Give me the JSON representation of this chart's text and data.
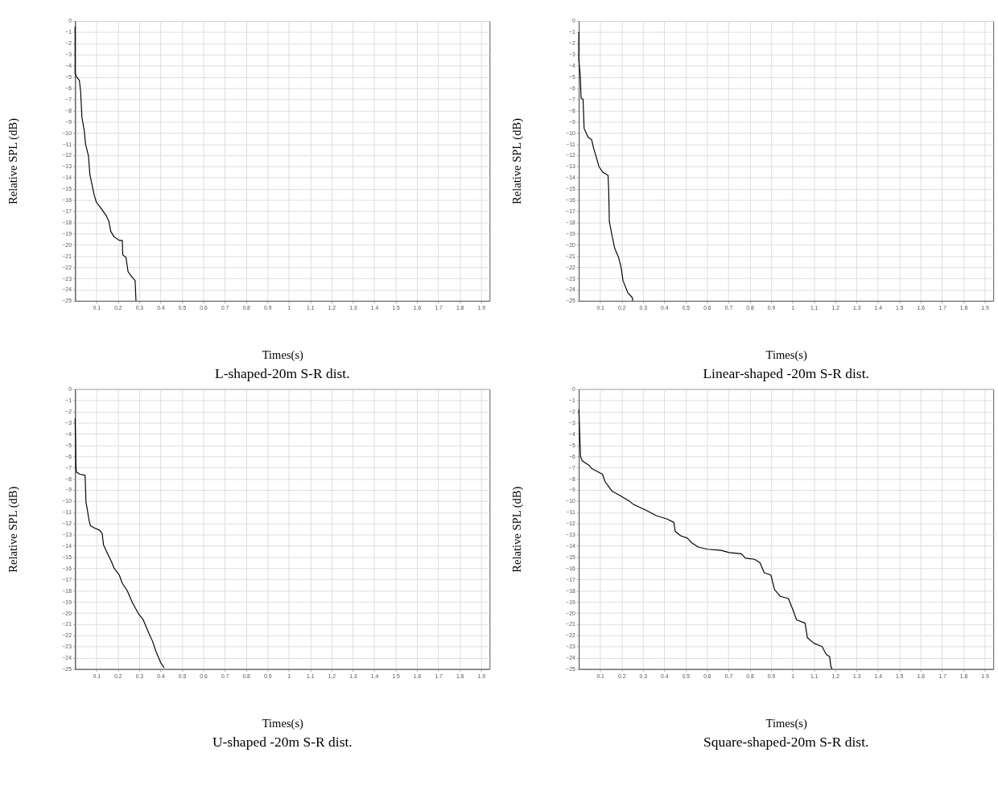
{
  "chart_data": [
    {
      "type": "line",
      "title": "L-shaped-20m S-R dist.",
      "xlabel": "Times(s)",
      "ylabel": "Relative SPL (dB)",
      "xlim": [
        0,
        1.94
      ],
      "ylim": [
        -25,
        0
      ],
      "xticks": [
        0.1,
        0.2,
        0.3,
        0.4,
        0.5,
        0.6,
        0.7,
        0.8,
        0.9,
        1,
        1.1,
        1.2,
        1.3,
        1.4,
        1.5,
        1.6,
        1.7,
        1.8,
        1.9
      ],
      "yticks": [
        -25,
        -24,
        -23,
        -22,
        -21,
        -20,
        -19,
        -18,
        -17,
        -16,
        -15,
        -14,
        -13,
        -12,
        -11,
        -10,
        -9,
        -8,
        -7,
        -6,
        -5,
        -4,
        -3,
        -2,
        -1,
        0
      ],
      "grid": true,
      "series": [
        {
          "color": "#000000",
          "x": [
            0,
            0,
            0.007,
            0.02,
            0.026,
            0.032,
            0.043,
            0.049,
            0.063,
            0.069,
            0.08,
            0.09,
            0.1,
            0.12,
            0.146,
            0.158,
            0.167,
            0.183,
            0.207,
            0.221,
            0.223,
            0.238,
            0.248,
            0.263,
            0.281,
            0.285
          ],
          "values": [
            -0.5,
            -4.7,
            -5,
            -5.3,
            -6.3,
            -8.6,
            -9.8,
            -11,
            -12.1,
            -13.7,
            -14.7,
            -15.6,
            -16.2,
            -16.7,
            -17.4,
            -17.9,
            -18.8,
            -19.3,
            -19.6,
            -19.6,
            -20.9,
            -21.1,
            -22.4,
            -22.8,
            -23.2,
            -25
          ]
        }
      ]
    },
    {
      "type": "line",
      "title": "Linear-shaped -20m S-R dist.",
      "xlabel": "Times(s)",
      "ylabel": "Relative SPL (dB)",
      "xlim": [
        0,
        1.94
      ],
      "ylim": [
        -25,
        0
      ],
      "xticks": [
        0.1,
        0.2,
        0.3,
        0.4,
        0.5,
        0.6,
        0.7,
        0.8,
        0.9,
        1,
        1.1,
        1.2,
        1.3,
        1.4,
        1.5,
        1.6,
        1.7,
        1.8,
        1.9
      ],
      "yticks": [
        -25,
        -24,
        -23,
        -22,
        -21,
        -20,
        -19,
        -18,
        -17,
        -16,
        -15,
        -14,
        -13,
        -12,
        -11,
        -10,
        -9,
        -8,
        -7,
        -6,
        -5,
        -4,
        -3,
        -2,
        -1,
        0
      ],
      "grid": true,
      "series": [
        {
          "color": "#000000",
          "x": [
            0,
            0,
            0.007,
            0.011,
            0.02,
            0.025,
            0.03,
            0.044,
            0.06,
            0.07,
            0.084,
            0.094,
            0.112,
            0.137,
            0.14,
            0.143,
            0.156,
            0.168,
            0.186,
            0.199,
            0.207,
            0.23,
            0.25,
            0.253
          ],
          "values": [
            -1,
            -3.5,
            -4.9,
            -6.9,
            -7,
            -9.6,
            -9.8,
            -10.4,
            -10.6,
            -11.4,
            -12.3,
            -13,
            -13.5,
            -13.8,
            -15.1,
            -17.9,
            -19.2,
            -20.3,
            -21.1,
            -22.1,
            -23.2,
            -24.3,
            -24.7,
            -25
          ]
        }
      ]
    },
    {
      "type": "line",
      "title": "U-shaped -20m S-R dist.",
      "xlabel": "Times(s)",
      "ylabel": "Relative SPL (dB)",
      "xlim": [
        0,
        1.94
      ],
      "ylim": [
        -25,
        0
      ],
      "xticks": [
        0.1,
        0.2,
        0.3,
        0.4,
        0.5,
        0.6,
        0.7,
        0.8,
        0.9,
        1,
        1.1,
        1.2,
        1.3,
        1.4,
        1.5,
        1.6,
        1.7,
        1.8,
        1.9
      ],
      "yticks": [
        -25,
        -24,
        -23,
        -22,
        -21,
        -20,
        -19,
        -18,
        -17,
        -16,
        -15,
        -14,
        -13,
        -12,
        -11,
        -10,
        -9,
        -8,
        -7,
        -6,
        -5,
        -4,
        -3,
        -2,
        -1,
        0
      ],
      "grid": true,
      "series": [
        {
          "color": "#000000",
          "x": [
            0,
            0.004,
            0.006,
            0.022,
            0.047,
            0.051,
            0.056,
            0.065,
            0.072,
            0.09,
            0.115,
            0.127,
            0.133,
            0.152,
            0.17,
            0.183,
            0.207,
            0.22,
            0.244,
            0.269,
            0.298,
            0.319,
            0.343,
            0.362,
            0.38,
            0.4,
            0.417
          ],
          "values": [
            -2.6,
            -6.8,
            -7.4,
            -7.6,
            -7.7,
            -10.1,
            -10.6,
            -11.7,
            -12.2,
            -12.4,
            -12.6,
            -12.9,
            -13.9,
            -14.7,
            -15.4,
            -16,
            -16.6,
            -17.3,
            -18,
            -19.1,
            -20.1,
            -20.6,
            -21.7,
            -22.5,
            -23.5,
            -24.4,
            -24.9
          ]
        }
      ]
    },
    {
      "type": "line",
      "title": "Square-shaped-20m S-R dist.",
      "xlabel": "Times(s)",
      "ylabel": "Relative SPL (dB)",
      "xlim": [
        0,
        1.94
      ],
      "ylim": [
        -25,
        0
      ],
      "xticks": [
        0.1,
        0.2,
        0.3,
        0.4,
        0.5,
        0.6,
        0.7,
        0.8,
        0.9,
        1,
        1.1,
        1.2,
        1.3,
        1.4,
        1.5,
        1.6,
        1.7,
        1.8,
        1.9
      ],
      "yticks": [
        -25,
        -24,
        -23,
        -22,
        -21,
        -20,
        -19,
        -18,
        -17,
        -16,
        -15,
        -14,
        -13,
        -12,
        -11,
        -10,
        -9,
        -8,
        -7,
        -6,
        -5,
        -4,
        -3,
        -2,
        -1,
        0
      ],
      "grid": true,
      "series": [
        {
          "color": "#000000",
          "x": [
            0,
            0.004,
            0.008,
            0.016,
            0.048,
            0.061,
            0.111,
            0.124,
            0.136,
            0.155,
            0.193,
            0.237,
            0.256,
            0.313,
            0.363,
            0.414,
            0.445,
            0.451,
            0.477,
            0.508,
            0.527,
            0.559,
            0.603,
            0.666,
            0.704,
            0.761,
            0.78,
            0.823,
            0.848,
            0.868,
            0.899,
            0.916,
            0.943,
            0.981,
            1.004,
            1.019,
            1.059,
            1.07,
            1.101,
            1.139,
            1.158,
            1.174,
            1.18,
            1.186
          ],
          "values": [
            -1.8,
            -3.8,
            -6,
            -6.4,
            -6.8,
            -7.1,
            -7.6,
            -8.3,
            -8.6,
            -9.1,
            -9.5,
            -10,
            -10.3,
            -10.8,
            -11.3,
            -11.6,
            -11.9,
            -12.7,
            -13.1,
            -13.3,
            -13.7,
            -14.1,
            -14.3,
            -14.4,
            -14.6,
            -14.7,
            -15.1,
            -15.2,
            -15.5,
            -16.4,
            -16.6,
            -17.9,
            -18.5,
            -18.7,
            -19.8,
            -20.6,
            -20.9,
            -22.2,
            -22.7,
            -23,
            -23.7,
            -23.9,
            -24.8,
            -25
          ]
        }
      ]
    }
  ]
}
